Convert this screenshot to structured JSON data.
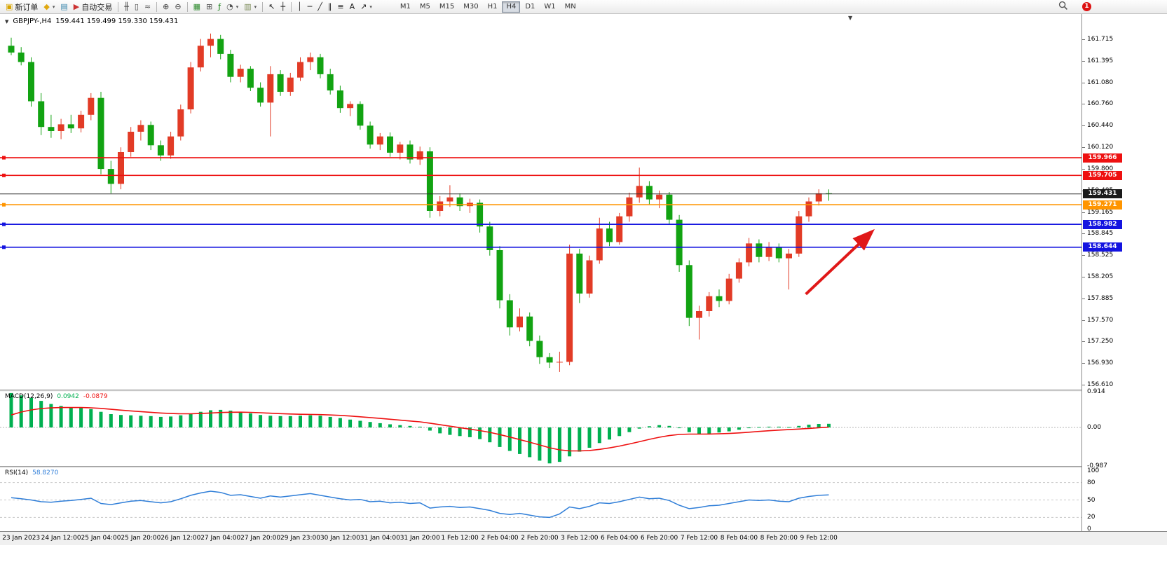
{
  "toolbar": {
    "caret_glyph": "▾",
    "notification_count": "1",
    "buttons": [
      {
        "name": "new-order-button",
        "glyph": "▣",
        "glyph_color": "#d8a400",
        "label": "新订单"
      },
      {
        "name": "charts-button",
        "glyph": "◆",
        "glyph_color": "#e0a810",
        "caret": true
      },
      {
        "name": "navigator-button",
        "glyph": "▤",
        "glyph_color": "#3a87ad"
      },
      {
        "name": "autotrading-button",
        "glyph": "▶",
        "glyph_color": "#cc3333",
        "label": "自动交易"
      },
      {
        "sep": true
      },
      {
        "name": "chart-bars-button",
        "glyph": "╫",
        "glyph_color": "#444444"
      },
      {
        "name": "chart-candles-button",
        "glyph": "▯",
        "glyph_color": "#444444"
      },
      {
        "name": "chart-line-button",
        "glyph": "≈",
        "glyph_color": "#444444"
      },
      {
        "sep": true
      },
      {
        "name": "zoom-in-button",
        "glyph": "⊕",
        "glyph_color": "#444444"
      },
      {
        "name": "zoom-out-button",
        "glyph": "⊖",
        "glyph_color": "#444444"
      },
      {
        "sep": true
      },
      {
        "name": "grid-button",
        "glyph": "▦",
        "glyph_color": "#2e8b2e"
      },
      {
        "name": "tile-windows-button",
        "glyph": "⊞",
        "glyph_color": "#555555"
      },
      {
        "name": "indicators-button",
        "glyph": "ƒ",
        "glyph_color": "#0a7a0a"
      },
      {
        "name": "period-button",
        "glyph": "◔",
        "glyph_color": "#555555",
        "caret": true
      },
      {
        "name": "template-button",
        "glyph": "▥",
        "glyph_color": "#7a8a55",
        "caret": true
      },
      {
        "sep": true
      },
      {
        "name": "cursor-button",
        "glyph": "↖",
        "glyph_color": "#222222"
      },
      {
        "name": "crosshair-button",
        "glyph": "┼",
        "glyph_color": "#222222"
      },
      {
        "sep": true
      },
      {
        "name": "vertical-line-button",
        "glyph": "│",
        "glyph_color": "#222222"
      },
      {
        "name": "horizontal-line-button",
        "glyph": "─",
        "glyph_color": "#222222"
      },
      {
        "name": "trendline-button",
        "glyph": "╱",
        "glyph_color": "#222222"
      },
      {
        "name": "channel-button",
        "glyph": "∥",
        "glyph_color": "#222222"
      },
      {
        "name": "fibonacci-button",
        "glyph": "≡",
        "glyph_color": "#222222"
      },
      {
        "name": "text-button",
        "glyph": "A",
        "glyph_color": "#222222"
      },
      {
        "name": "arrows-button",
        "glyph": "↗",
        "glyph_color": "#222222",
        "caret": true
      }
    ],
    "timeframes": [
      "M1",
      "M5",
      "M15",
      "M30",
      "H1",
      "H4",
      "D1",
      "W1",
      "MN"
    ],
    "active_timeframe": "H4"
  },
  "chart": {
    "collapse_glyph": "▼",
    "shift_marker": "▼",
    "symbol": "GBPJPY-,H4",
    "ohlc": "159.441 159.499 159.330 159.431"
  },
  "indicators": {
    "macd": {
      "name": "MACD(12,26,9)",
      "value": "0.0942",
      "signal": "-0.0879"
    },
    "rsi": {
      "name": "RSI(14)",
      "value": "58.8270"
    }
  },
  "chart_data": {
    "type": "candlestick",
    "symbol": "GBPJPY-,H4",
    "timeframe": "H4",
    "ylim": [
      156.53,
      162.089
    ],
    "price_axis_labels": [
      "161.715",
      "161.395",
      "161.080",
      "160.760",
      "160.440",
      "160.120",
      "159.800",
      "159.485",
      "159.165",
      "158.845",
      "158.525",
      "158.205",
      "157.885",
      "157.570",
      "157.250",
      "156.930",
      "156.610"
    ],
    "time_labels": [
      "23 Jan 2023",
      "24 Jan 12:00",
      "25 Jan 04:00",
      "25 Jan 20:00",
      "26 Jan 12:00",
      "27 Jan 04:00",
      "27 Jan 20:00",
      "29 Jan 23:00",
      "30 Jan 12:00",
      "31 Jan 04:00",
      "31 Jan 20:00",
      "1 Feb 12:00",
      "2 Feb 04:00",
      "2 Feb 20:00",
      "3 Feb 12:00",
      "6 Feb 04:00",
      "6 Feb 20:00",
      "7 Feb 12:00",
      "8 Feb 04:00",
      "8 Feb 20:00",
      "9 Feb 12:00"
    ],
    "time_label_start": 1,
    "time_label_step": 4,
    "colors": {
      "up": "#e23b26",
      "down": "#12a312",
      "current_line": "#303030"
    },
    "candles": [
      [
        161.62,
        161.74,
        161.48,
        161.52
      ],
      [
        161.52,
        161.6,
        161.33,
        161.38
      ],
      [
        161.38,
        161.45,
        160.72,
        160.8
      ],
      [
        160.8,
        160.92,
        160.3,
        160.42
      ],
      [
        160.42,
        160.6,
        160.26,
        160.36
      ],
      [
        160.36,
        160.54,
        160.24,
        160.46
      ],
      [
        160.46,
        160.6,
        160.33,
        160.4
      ],
      [
        160.4,
        160.66,
        160.34,
        160.6
      ],
      [
        160.6,
        160.92,
        160.52,
        160.85
      ],
      [
        160.85,
        160.94,
        159.72,
        159.8
      ],
      [
        159.8,
        159.92,
        159.44,
        159.58
      ],
      [
        159.58,
        160.12,
        159.5,
        160.05
      ],
      [
        160.05,
        160.42,
        159.98,
        160.35
      ],
      [
        160.35,
        160.52,
        160.22,
        160.45
      ],
      [
        160.45,
        160.5,
        160.08,
        160.15
      ],
      [
        160.15,
        160.22,
        159.92,
        160.0
      ],
      [
        160.0,
        160.35,
        159.95,
        160.28
      ],
      [
        160.28,
        160.75,
        160.22,
        160.68
      ],
      [
        160.68,
        161.38,
        160.62,
        161.3
      ],
      [
        161.3,
        161.72,
        161.24,
        161.62
      ],
      [
        161.62,
        161.8,
        161.45,
        161.72
      ],
      [
        161.72,
        161.78,
        161.42,
        161.5
      ],
      [
        161.5,
        161.56,
        161.08,
        161.16
      ],
      [
        161.16,
        161.34,
        161.08,
        161.28
      ],
      [
        161.28,
        161.32,
        160.95,
        161.0
      ],
      [
        161.0,
        161.08,
        160.72,
        160.78
      ],
      [
        160.78,
        161.32,
        160.28,
        161.2
      ],
      [
        161.2,
        161.26,
        160.88,
        160.94
      ],
      [
        160.94,
        161.22,
        160.88,
        161.15
      ],
      [
        161.15,
        161.45,
        161.1,
        161.38
      ],
      [
        161.38,
        161.52,
        161.26,
        161.45
      ],
      [
        161.45,
        161.5,
        161.14,
        161.2
      ],
      [
        161.2,
        161.28,
        160.9,
        160.96
      ],
      [
        160.96,
        161.03,
        160.63,
        160.7
      ],
      [
        160.7,
        160.8,
        160.58,
        160.76
      ],
      [
        160.76,
        160.8,
        160.38,
        160.44
      ],
      [
        160.44,
        160.5,
        160.1,
        160.16
      ],
      [
        160.16,
        160.33,
        160.08,
        160.28
      ],
      [
        160.28,
        160.34,
        159.98,
        160.04
      ],
      [
        160.04,
        160.2,
        159.94,
        160.16
      ],
      [
        160.16,
        160.22,
        159.88,
        159.94
      ],
      [
        159.94,
        160.13,
        159.86,
        160.06
      ],
      [
        160.06,
        160.12,
        159.08,
        159.18
      ],
      [
        159.18,
        159.4,
        159.1,
        159.32
      ],
      [
        159.32,
        159.56,
        159.24,
        159.38
      ],
      [
        159.38,
        159.44,
        159.18,
        159.25
      ],
      [
        159.25,
        159.36,
        159.15,
        159.3
      ],
      [
        159.3,
        159.35,
        158.86,
        158.95
      ],
      [
        158.95,
        159.02,
        158.52,
        158.6
      ],
      [
        158.6,
        158.66,
        157.74,
        157.86
      ],
      [
        157.86,
        157.95,
        157.34,
        157.46
      ],
      [
        157.46,
        157.74,
        157.4,
        157.62
      ],
      [
        157.62,
        157.68,
        157.18,
        157.26
      ],
      [
        157.26,
        157.34,
        156.92,
        157.02
      ],
      [
        157.02,
        157.08,
        156.86,
        156.94
      ],
      [
        156.94,
        157.1,
        156.8,
        156.95
      ],
      [
        156.95,
        158.68,
        156.9,
        158.55
      ],
      [
        158.55,
        158.62,
        157.82,
        157.96
      ],
      [
        157.96,
        158.52,
        157.9,
        158.45
      ],
      [
        158.45,
        159.08,
        158.4,
        158.92
      ],
      [
        158.92,
        159.02,
        158.66,
        158.72
      ],
      [
        158.72,
        159.15,
        158.68,
        159.1
      ],
      [
        159.1,
        159.45,
        159.02,
        159.38
      ],
      [
        159.38,
        159.82,
        159.3,
        159.55
      ],
      [
        159.55,
        159.62,
        159.28,
        159.35
      ],
      [
        159.35,
        159.48,
        159.22,
        159.42
      ],
      [
        159.42,
        159.46,
        158.98,
        159.05
      ],
      [
        159.05,
        159.12,
        158.28,
        158.38
      ],
      [
        158.38,
        158.45,
        157.48,
        157.6
      ],
      [
        157.6,
        157.78,
        157.28,
        157.7
      ],
      [
        157.7,
        157.98,
        157.62,
        157.92
      ],
      [
        157.92,
        158.02,
        157.76,
        157.85
      ],
      [
        157.85,
        158.25,
        157.8,
        158.18
      ],
      [
        158.18,
        158.48,
        158.12,
        158.42
      ],
      [
        158.42,
        158.78,
        158.36,
        158.7
      ],
      [
        158.7,
        158.76,
        158.42,
        158.5
      ],
      [
        158.5,
        158.72,
        158.44,
        158.65
      ],
      [
        158.65,
        158.7,
        158.42,
        158.48
      ],
      [
        158.48,
        158.62,
        158.02,
        158.55
      ],
      [
        158.55,
        159.18,
        158.5,
        159.1
      ],
      [
        159.1,
        159.38,
        159.02,
        159.32
      ],
      [
        159.32,
        159.5,
        159.26,
        159.44
      ],
      [
        159.441,
        159.499,
        159.33,
        159.431
      ]
    ],
    "hlines": [
      {
        "price": 159.966,
        "label": "159.966",
        "color": "#ee1111"
      },
      {
        "price": 159.705,
        "label": "159.705",
        "color": "#ee1111"
      },
      {
        "price": 159.271,
        "label": "159.271",
        "color": "#ff9500"
      },
      {
        "price": 158.982,
        "label": "158.982",
        "color": "#1414e0"
      },
      {
        "price": 158.644,
        "label": "158.644",
        "color": "#1414e0"
      }
    ],
    "current_price": {
      "value": 159.431,
      "label": "159.431",
      "tag_color": "#1a1a1a"
    },
    "arrow": {
      "bar1": 79.7,
      "p1": 157.95,
      "bar2": 86.3,
      "p2": 158.87,
      "color": "#e01818"
    },
    "macd": {
      "range": [
        -0.987,
        0.914
      ],
      "scale_labels": [
        "0.914",
        "0.00",
        "-0.987"
      ],
      "hist_color": "#00b050",
      "signal_color": "#ee1111",
      "hist": [
        0.88,
        0.82,
        0.76,
        0.68,
        0.6,
        0.55,
        0.52,
        0.5,
        0.47,
        0.4,
        0.34,
        0.32,
        0.31,
        0.3,
        0.29,
        0.27,
        0.28,
        0.31,
        0.35,
        0.4,
        0.44,
        0.45,
        0.43,
        0.4,
        0.36,
        0.32,
        0.3,
        0.29,
        0.29,
        0.3,
        0.31,
        0.3,
        0.27,
        0.24,
        0.2,
        0.17,
        0.14,
        0.11,
        0.08,
        0.06,
        0.04,
        0.02,
        -0.08,
        -0.15,
        -0.19,
        -0.22,
        -0.25,
        -0.3,
        -0.38,
        -0.5,
        -0.6,
        -0.68,
        -0.76,
        -0.85,
        -0.92,
        -0.88,
        -0.74,
        -0.62,
        -0.52,
        -0.4,
        -0.31,
        -0.22,
        -0.12,
        -0.03,
        0.03,
        0.06,
        0.04,
        -0.02,
        -0.12,
        -0.17,
        -0.16,
        -0.13,
        -0.1,
        -0.06,
        -0.02,
        0.01,
        0.02,
        0.02,
        0.01,
        0.04,
        0.07,
        0.09,
        0.094
      ]
    },
    "rsi": {
      "range": [
        0,
        100
      ],
      "levels": [
        80,
        50,
        20
      ],
      "scale_labels": [
        "100",
        "80",
        "50",
        "20",
        "0"
      ],
      "color": "#2f7ed8",
      "values": [
        54,
        52,
        50,
        47,
        46,
        48,
        49,
        51,
        53,
        44,
        42,
        45,
        48,
        49,
        47,
        45,
        47,
        52,
        58,
        62,
        65,
        63,
        58,
        59,
        56,
        53,
        57,
        55,
        57,
        59,
        61,
        58,
        55,
        52,
        50,
        51,
        47,
        48,
        45,
        46,
        44,
        45,
        36,
        38,
        39,
        37,
        38,
        35,
        32,
        27,
        25,
        27,
        24,
        21,
        20,
        26,
        38,
        35,
        39,
        45,
        44,
        47,
        51,
        55,
        52,
        53,
        49,
        41,
        35,
        37,
        40,
        41,
        44,
        47,
        50,
        49,
        50,
        48,
        47,
        53,
        56,
        58,
        58.8
      ]
    }
  }
}
